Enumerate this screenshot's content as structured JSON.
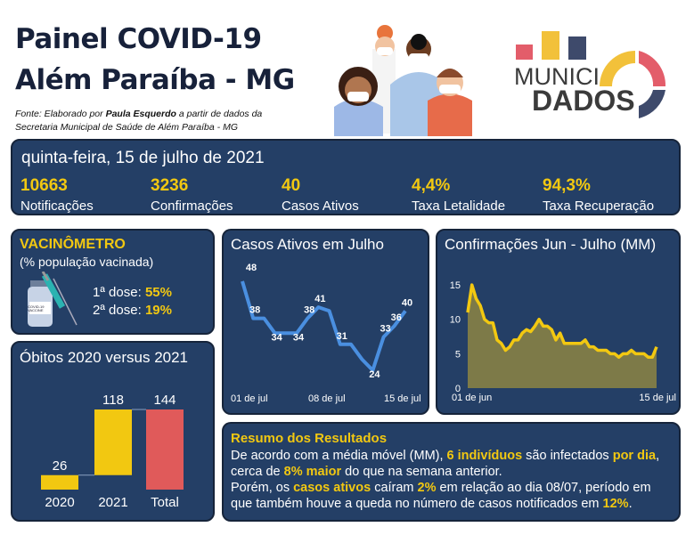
{
  "header": {
    "title_line1": "Painel COVID-19",
    "title_line2": "Além Paraíba - MG",
    "source_prefix": "Fonte: Elaborado por ",
    "source_author": "Paula Esquerdo",
    "source_suffix": " a partir de dados da",
    "source_line2": "Secretaria Municipal de Saúde de Além Paraíba - MG"
  },
  "logo": {
    "line1": "MUNICI",
    "line2": "DADOS"
  },
  "summary": {
    "date": "quinta-feira, 15 de julho de 2021",
    "stats": [
      {
        "value": "10663",
        "label": "Notificações"
      },
      {
        "value": "3236",
        "label": "Confirmações"
      },
      {
        "value": "40",
        "label": "Casos Ativos"
      },
      {
        "value": "4,4%",
        "label": "Taxa Letalidade"
      },
      {
        "value": "94,3%",
        "label": "Taxa Recuperação"
      }
    ]
  },
  "vaccine": {
    "title": "VACINÔMETRO",
    "subtitle": "(% população vacinada)",
    "dose1_label": "1ª dose: ",
    "dose1_value": "55%",
    "dose2_label": "2ª dose: ",
    "dose2_value": "19%",
    "vial_text": "COVID-19 VACCINE"
  },
  "colors": {
    "panel": "#243f66",
    "accent": "#f2c811",
    "total": "#e05a5a",
    "line": "#4a8fe0"
  },
  "chart_data": [
    {
      "type": "bar",
      "title": "Óbitos 2020 versus 2021",
      "subtype": "waterfall",
      "categories": [
        "2020",
        "2021",
        "Total"
      ],
      "values": [
        26,
        118,
        144
      ],
      "labels": [
        "26",
        "118",
        "144"
      ]
    },
    {
      "type": "line",
      "title": "Casos Ativos em Julho",
      "x_ticks": [
        "01 de jul",
        "08 de jul",
        "15 de jul"
      ],
      "values": [
        48,
        38,
        38,
        34,
        34,
        34,
        38,
        41,
        40,
        31,
        31,
        27,
        24,
        33,
        36,
        40
      ],
      "data_labels": [
        {
          "i": 0,
          "t": "48"
        },
        {
          "i": 1,
          "t": "38"
        },
        {
          "i": 3,
          "t": "34"
        },
        {
          "i": 5,
          "t": "34"
        },
        {
          "i": 6,
          "t": "38"
        },
        {
          "i": 7,
          "t": "41"
        },
        {
          "i": 9,
          "t": "31"
        },
        {
          "i": 12,
          "t": "24"
        },
        {
          "i": 13,
          "t": "33"
        },
        {
          "i": 14,
          "t": "36"
        },
        {
          "i": 15,
          "t": "40"
        }
      ]
    },
    {
      "type": "area",
      "title": "Confirmações Jun - Julho (MM)",
      "x_ticks": [
        "01 de jun",
        "15 de jul"
      ],
      "y_ticks": [
        "0",
        "5",
        "10",
        "15"
      ],
      "ylim": [
        0,
        15
      ],
      "values": [
        11,
        15,
        13,
        12,
        10,
        9.5,
        9.5,
        7,
        6.5,
        5.5,
        6,
        7,
        7,
        8,
        8.5,
        8.2,
        9,
        10,
        9,
        9,
        8.5,
        7,
        8,
        6.5,
        6.5,
        6.5,
        6.5,
        6.5,
        7,
        6,
        6,
        5.5,
        5.5,
        5.5,
        5,
        5,
        4.5,
        5,
        5,
        5.5,
        5,
        5,
        5,
        4.5,
        4.5,
        6
      ]
    }
  ],
  "results": {
    "title": "Resumo dos Resultados",
    "p1": [
      "De acordo com a média móvel (MM), ",
      "6 indivíduos",
      " são infectados ",
      "por dia",
      ","
    ],
    "p2": [
      "cerca de ",
      "8% maior",
      " do que na semana anterior."
    ],
    "p3": [
      "Porém, os ",
      "casos ativos",
      " caíram ",
      "2%",
      " em relação ao dia 08/07, período em"
    ],
    "p4": [
      "que também houve a queda no número de casos notificados em ",
      "12%",
      "."
    ]
  }
}
